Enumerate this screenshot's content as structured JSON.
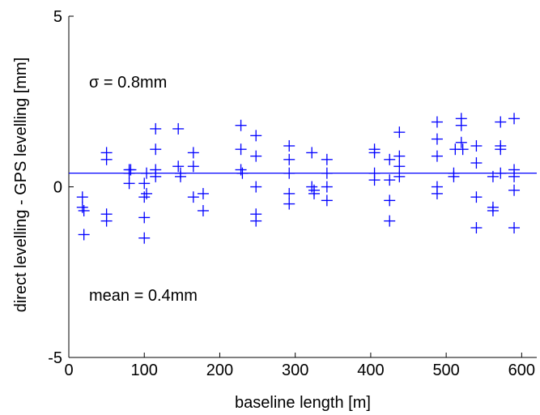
{
  "chart_data": {
    "type": "scatter",
    "xlabel": "baseline length [m]",
    "ylabel": "direct levelling - GPS levelling [mm]",
    "xlim": [
      0,
      620
    ],
    "ylim": [
      -5,
      5
    ],
    "xticks": [
      0,
      100,
      200,
      300,
      400,
      500,
      600
    ],
    "yticks": [
      -5,
      0,
      5
    ],
    "grid": false,
    "colors": {
      "marker": "#0000ff",
      "axis": "#000000"
    },
    "annotations": [
      {
        "text": "σ = 0.8mm"
      },
      {
        "text": "mean = 0.4mm"
      }
    ],
    "mean_line": {
      "y": 0.4
    },
    "series": [
      {
        "points": [
          [
            18,
            -0.3
          ],
          [
            18,
            -0.6
          ],
          [
            20,
            -0.7
          ],
          [
            20,
            -1.4
          ],
          [
            50,
            1.0
          ],
          [
            50,
            0.8
          ],
          [
            50,
            -0.8
          ],
          [
            50,
            -1.0
          ],
          [
            80,
            0.5
          ],
          [
            80,
            0.4
          ],
          [
            80,
            0.1
          ],
          [
            82,
            0.5
          ],
          [
            100,
            0.1
          ],
          [
            100,
            -0.3
          ],
          [
            100,
            -0.9
          ],
          [
            100,
            -1.5
          ],
          [
            103,
            0.4
          ],
          [
            103,
            -0.2
          ],
          [
            115,
            1.7
          ],
          [
            115,
            1.1
          ],
          [
            115,
            0.5
          ],
          [
            115,
            0.3
          ],
          [
            145,
            1.7
          ],
          [
            145,
            0.6
          ],
          [
            148,
            0.4
          ],
          [
            148,
            0.3
          ],
          [
            165,
            1.0
          ],
          [
            165,
            0.6
          ],
          [
            165,
            -0.3
          ],
          [
            178,
            -0.2
          ],
          [
            178,
            -0.7
          ],
          [
            228,
            1.8
          ],
          [
            228,
            1.1
          ],
          [
            228,
            0.5
          ],
          [
            230,
            0.4
          ],
          [
            248,
            1.5
          ],
          [
            248,
            0.9
          ],
          [
            248,
            0.0
          ],
          [
            248,
            -0.8
          ],
          [
            248,
            -1.0
          ],
          [
            292,
            1.2
          ],
          [
            292,
            0.8
          ],
          [
            292,
            0.4
          ],
          [
            292,
            -0.2
          ],
          [
            292,
            -0.5
          ],
          [
            322,
            1.0
          ],
          [
            322,
            0.0
          ],
          [
            325,
            -0.1
          ],
          [
            325,
            -0.2
          ],
          [
            342,
            0.8
          ],
          [
            342,
            0.4
          ],
          [
            342,
            0.0
          ],
          [
            342,
            -0.4
          ],
          [
            405,
            1.1
          ],
          [
            405,
            1.0
          ],
          [
            405,
            0.4
          ],
          [
            405,
            0.2
          ],
          [
            425,
            0.8
          ],
          [
            425,
            0.2
          ],
          [
            425,
            -0.4
          ],
          [
            425,
            -1.0
          ],
          [
            438,
            1.6
          ],
          [
            438,
            0.9
          ],
          [
            438,
            0.6
          ],
          [
            438,
            0.3
          ],
          [
            488,
            1.9
          ],
          [
            488,
            1.4
          ],
          [
            488,
            0.9
          ],
          [
            488,
            0.0
          ],
          [
            488,
            -0.2
          ],
          [
            510,
            0.4
          ],
          [
            510,
            0.3
          ],
          [
            512,
            1.1
          ],
          [
            520,
            2.0
          ],
          [
            520,
            1.8
          ],
          [
            520,
            1.3
          ],
          [
            522,
            1.1
          ],
          [
            540,
            1.2
          ],
          [
            540,
            0.7
          ],
          [
            540,
            -0.3
          ],
          [
            540,
            -1.2
          ],
          [
            562,
            0.3
          ],
          [
            562,
            -0.6
          ],
          [
            562,
            -0.7
          ],
          [
            572,
            1.9
          ],
          [
            572,
            1.2
          ],
          [
            572,
            1.1
          ],
          [
            572,
            0.4
          ],
          [
            590,
            2.0
          ],
          [
            590,
            0.5
          ],
          [
            590,
            0.3
          ],
          [
            590,
            -0.1
          ],
          [
            590,
            -1.2
          ]
        ]
      }
    ]
  }
}
